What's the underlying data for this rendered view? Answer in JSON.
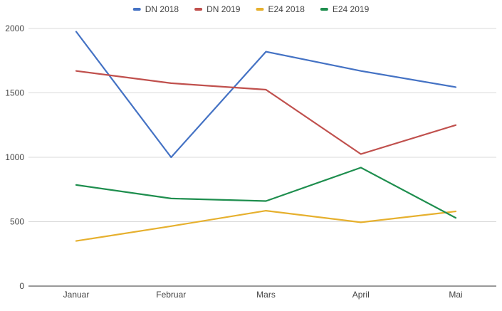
{
  "chart_data": {
    "type": "line",
    "categories": [
      "Januar",
      "Februar",
      "Mars",
      "April",
      "Mai"
    ],
    "ylim": [
      0,
      2000
    ],
    "yticks": [
      0,
      500,
      1000,
      1500,
      2000
    ],
    "grid": true,
    "legend_position": "top",
    "series": [
      {
        "name": "DN 2018",
        "color": "#4472C4",
        "values": [
          1975,
          1000,
          1820,
          1670,
          1545
        ]
      },
      {
        "name": "DN 2019",
        "color": "#C0504D",
        "values": [
          1670,
          1575,
          1525,
          1025,
          1250
        ]
      },
      {
        "name": "E24 2018",
        "color": "#E6B02E",
        "values": [
          350,
          465,
          585,
          495,
          580
        ]
      },
      {
        "name": "E24 2019",
        "color": "#1E8E4E",
        "values": [
          785,
          680,
          660,
          920,
          530
        ]
      }
    ]
  }
}
